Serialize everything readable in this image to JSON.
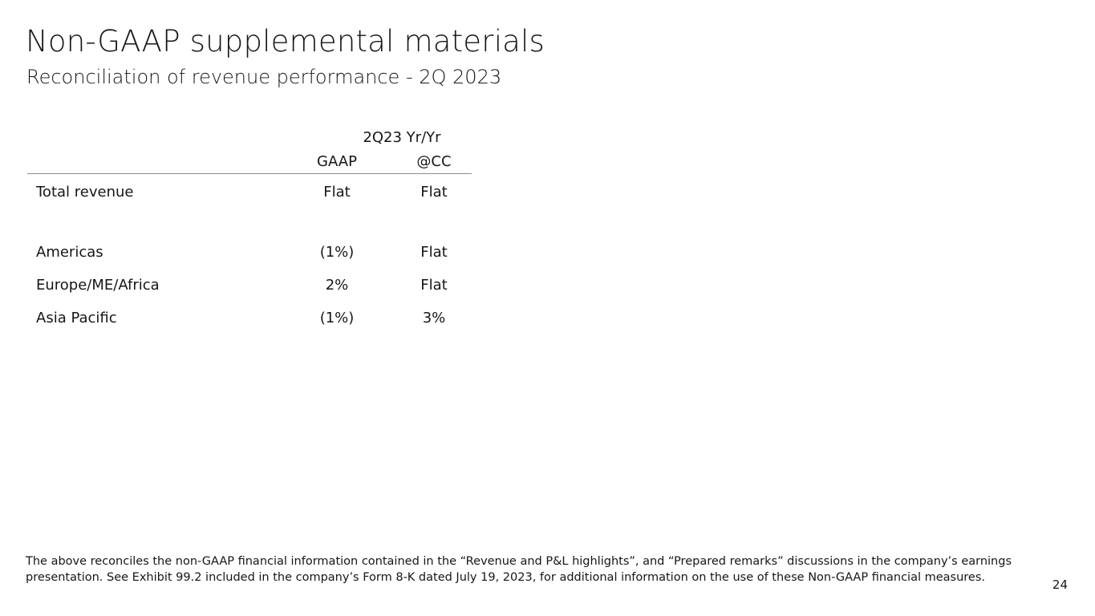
{
  "header": {
    "title": "Non-GAAP supplemental materials",
    "subtitle": "Reconciliation of revenue performance - 2Q 2023"
  },
  "table": {
    "group_header": "2Q23 Yr/Yr",
    "columns": [
      "GAAP",
      "@CC"
    ],
    "rows": [
      {
        "label": "Total revenue",
        "gaap": "Flat",
        "cc": "Flat"
      },
      {
        "label": "Americas",
        "gaap": "(1%)",
        "cc": "Flat"
      },
      {
        "label": "Europe/ME/Africa",
        "gaap": "2%",
        "cc": "Flat"
      },
      {
        "label": "Asia Pacific",
        "gaap": "(1%)",
        "cc": "3%"
      }
    ]
  },
  "footer": {
    "footnote": "The above reconciles the non-GAAP financial information contained in the “Revenue and P&L highlights”, and “Prepared remarks” discussions in the company’s earnings\npresentation.  See Exhibit 99.2 included in the company’s Form 8-K dated July 19, 2023, for additional information on the use of these Non-GAAP financial measures.",
    "page_number": "24"
  }
}
